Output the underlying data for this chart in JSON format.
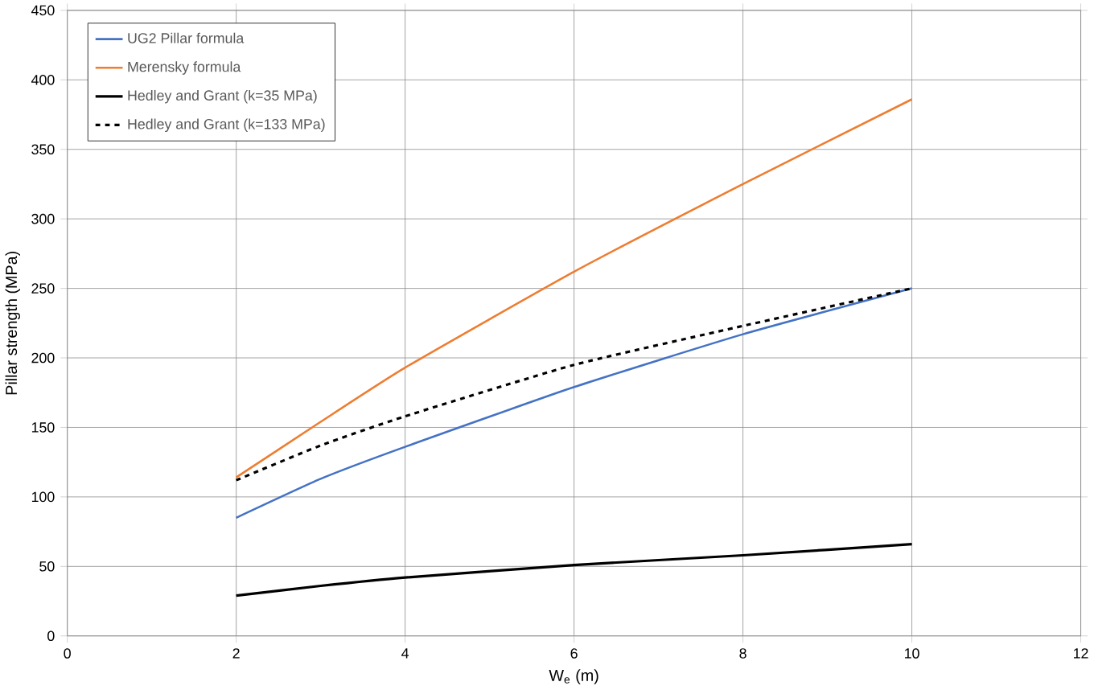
{
  "chart_data": {
    "type": "line",
    "xlabel": "W$_{e}$ (m)",
    "ylabel": "Pillar strength (MPa)",
    "x": [
      2,
      3,
      4,
      6,
      8,
      10
    ],
    "series": [
      {
        "name": "UG2 Pillar formula",
        "color": "#4472c4",
        "values": [
          85,
          113,
          136,
          179,
          217,
          250
        ]
      },
      {
        "name": "Merensky formula",
        "color": "#ed7d31",
        "values": [
          114,
          154,
          193,
          262,
          325,
          386
        ]
      },
      {
        "name": "Hedley and Grant (k=35 MPa)",
        "color": "#000000",
        "values": [
          29,
          36,
          42,
          51,
          58,
          66
        ]
      },
      {
        "name": "Hedley and Grant (k=133 MPa)",
        "color": "#000000",
        "line_style": "dashed",
        "values": [
          112,
          137,
          158,
          195,
          223,
          250
        ]
      }
    ],
    "xlim": [
      0,
      12
    ],
    "xticks": [
      0,
      2,
      4,
      6,
      8,
      10,
      12
    ],
    "ylim": [
      0,
      450
    ],
    "yticks": [
      0,
      50,
      100,
      150,
      200,
      250,
      300,
      350,
      400,
      450
    ],
    "grid": true,
    "legend": "top left",
    "marker": "none",
    "line_style": "solid"
  }
}
